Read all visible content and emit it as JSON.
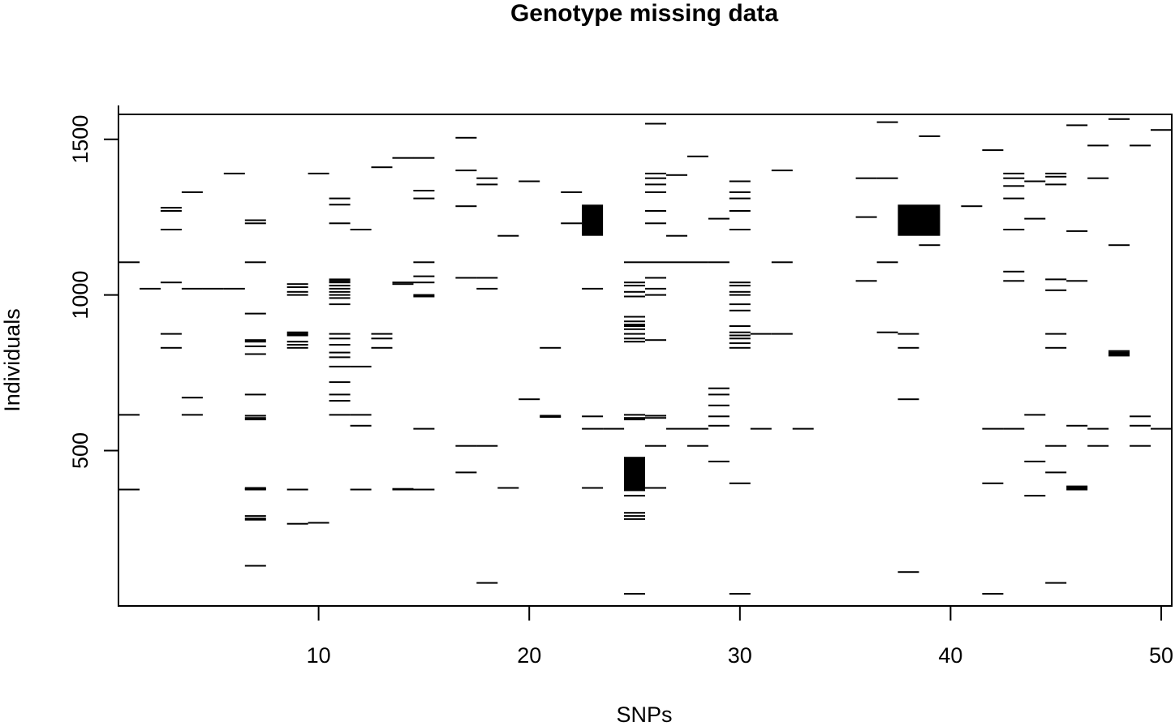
{
  "chart_data": {
    "type": "heatmap",
    "title": "Genotype missing data",
    "xlabel": "SNPs",
    "ylabel": "Individuals",
    "xlim": [
      0.5,
      50.5
    ],
    "ylim": [
      1,
      1580
    ],
    "xticks": [
      10,
      20,
      30,
      40,
      50
    ],
    "yticks": [
      500,
      1000,
      1500
    ],
    "grid": false,
    "legend": "none",
    "colors": {
      "missing": "#000000",
      "observed": "#ffffff"
    },
    "missing_blocks": [
      {
        "snp": 23,
        "from": 1190,
        "to": 1290
      },
      {
        "snp": 25,
        "from": 370,
        "to": 480
      },
      {
        "snp": 38,
        "from": 1190,
        "to": 1290
      },
      {
        "snp": 39,
        "from": 1190,
        "to": 1290
      }
    ],
    "missing_marks": [
      {
        "snp": 1,
        "ind": [
          1105,
          615,
          375
        ]
      },
      {
        "snp": 2,
        "ind": [
          1020
        ]
      },
      {
        "snp": 3,
        "ind": [
          1280,
          1270,
          1210,
          1040,
          875,
          830
        ]
      },
      {
        "snp": 4,
        "ind": [
          1330,
          1020,
          670,
          615
        ]
      },
      {
        "snp": 5,
        "ind": [
          1020
        ]
      },
      {
        "snp": 6,
        "ind": [
          1390,
          1020
        ]
      },
      {
        "snp": 7,
        "ind": [
          1240,
          1230,
          1105,
          940,
          855,
          850,
          835,
          810,
          680,
          612,
          605,
          600,
          380,
          377,
          375,
          290,
          282,
          278,
          130
        ]
      },
      {
        "snp": 9,
        "ind": [
          1035,
          1025,
          1010,
          1000,
          880,
          875,
          870,
          850,
          840,
          830,
          375,
          265
        ]
      },
      {
        "snp": 10,
        "ind": [
          1390,
          268
        ]
      },
      {
        "snp": 11,
        "ind": [
          1310,
          1290,
          1230,
          1050,
          1045,
          1040,
          1030,
          1020,
          1010,
          1000,
          990,
          970,
          875,
          860,
          840,
          815,
          800,
          770,
          720,
          680,
          660,
          615
        ]
      },
      {
        "snp": 12,
        "ind": [
          1210,
          770,
          615,
          580,
          375
        ]
      },
      {
        "snp": 13,
        "ind": [
          1410,
          875,
          860,
          830
        ]
      },
      {
        "snp": 14,
        "ind": [
          1440,
          1040,
          1035,
          377,
          375
        ]
      },
      {
        "snp": 15,
        "ind": [
          1440,
          1335,
          1310,
          1105,
          1060,
          1040,
          1000,
          995,
          570,
          375
        ]
      },
      {
        "snp": 17,
        "ind": [
          1505,
          1400,
          1285,
          1055,
          515,
          430
        ]
      },
      {
        "snp": 18,
        "ind": [
          1375,
          1355,
          1055,
          1020,
          515,
          75
        ]
      },
      {
        "snp": 19,
        "ind": [
          1190,
          380
        ]
      },
      {
        "snp": 20,
        "ind": [
          1365,
          665
        ]
      },
      {
        "snp": 21,
        "ind": [
          830,
          612,
          608
        ]
      },
      {
        "snp": 22,
        "ind": [
          1330,
          1230
        ]
      },
      {
        "snp": 23,
        "ind": [
          1020,
          610,
          570,
          380
        ]
      },
      {
        "snp": 24,
        "ind": [
          570
        ]
      },
      {
        "snp": 25,
        "ind": [
          1105,
          1040,
          1030,
          1010,
          995,
          930,
          915,
          905,
          900,
          890,
          875,
          860,
          850,
          615,
          605,
          600,
          355,
          300,
          290,
          280,
          40
        ]
      },
      {
        "snp": 26,
        "ind": [
          1550,
          1390,
          1375,
          1355,
          1330,
          1270,
          1230,
          1105,
          1055,
          1020,
          1000,
          855,
          612,
          605,
          515,
          380
        ]
      },
      {
        "snp": 27,
        "ind": [
          1385,
          1190,
          1105,
          570
        ]
      },
      {
        "snp": 28,
        "ind": [
          1445,
          1105,
          570,
          515
        ]
      },
      {
        "snp": 29,
        "ind": [
          1245,
          1105,
          700,
          680,
          645,
          610,
          580,
          465
        ]
      },
      {
        "snp": 30,
        "ind": [
          1365,
          1330,
          1310,
          1270,
          1210,
          1040,
          1030,
          1010,
          1000,
          970,
          950,
          900,
          880,
          870,
          860,
          845,
          830,
          395,
          40
        ]
      },
      {
        "snp": 31,
        "ind": [
          875,
          570
        ]
      },
      {
        "snp": 32,
        "ind": [
          1400,
          1105,
          875
        ]
      },
      {
        "snp": 33,
        "ind": [
          570
        ]
      },
      {
        "snp": 36,
        "ind": [
          1375,
          1250,
          1045
        ]
      },
      {
        "snp": 37,
        "ind": [
          1555,
          1375,
          1105,
          880
        ]
      },
      {
        "snp": 38,
        "ind": [
          875,
          830,
          665,
          110
        ]
      },
      {
        "snp": 39,
        "ind": [
          1510,
          1160
        ]
      },
      {
        "snp": 41,
        "ind": [
          1285
        ]
      },
      {
        "snp": 42,
        "ind": [
          1465,
          570,
          395,
          40
        ]
      },
      {
        "snp": 43,
        "ind": [
          1390,
          1375,
          1350,
          1310,
          1210,
          1075,
          1045,
          570
        ]
      },
      {
        "snp": 44,
        "ind": [
          1365,
          1245,
          615,
          465,
          355
        ]
      },
      {
        "snp": 45,
        "ind": [
          1390,
          1380,
          1355,
          1050,
          1015,
          875,
          830,
          515,
          430,
          75
        ]
      },
      {
        "snp": 46,
        "ind": [
          1545,
          1205,
          1045,
          580,
          385,
          380,
          375
        ]
      },
      {
        "snp": 47,
        "ind": [
          1480,
          1375,
          570,
          515
        ]
      },
      {
        "snp": 48,
        "ind": [
          1565,
          1160,
          820,
          815,
          810,
          805
        ]
      },
      {
        "snp": 49,
        "ind": [
          1480,
          610,
          580,
          515
        ]
      },
      {
        "snp": 50,
        "ind": [
          1530,
          570
        ]
      }
    ]
  }
}
